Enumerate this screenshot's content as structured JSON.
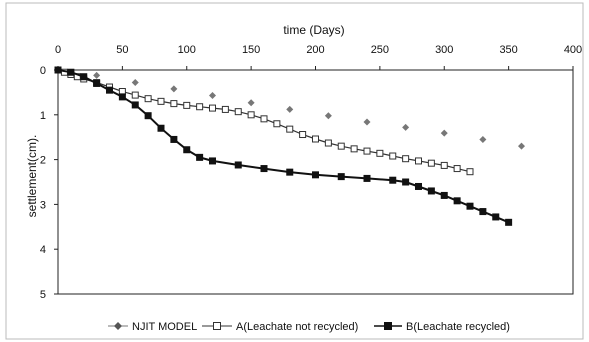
{
  "chart_data": {
    "type": "line",
    "title": "",
    "xlabel": "time (Days)",
    "ylabel": "settlement(cm).",
    "xlim": [
      0,
      400
    ],
    "ylim": [
      0,
      5
    ],
    "y_inverted": true,
    "x_axis_position": "top",
    "grid": false,
    "legend_position": "bottom",
    "x_ticks": [
      "0",
      "50",
      "100",
      "150",
      "200",
      "250",
      "300",
      "350",
      "400"
    ],
    "y_ticks": [
      "0",
      "1",
      "2",
      "3",
      "4",
      "5"
    ],
    "series": [
      {
        "name": "NJIT MODEL",
        "marker": "diamond",
        "color": "#777777",
        "line": false,
        "points": [
          [
            30,
            0.12
          ],
          [
            60,
            0.28
          ],
          [
            90,
            0.42
          ],
          [
            120,
            0.57
          ],
          [
            150,
            0.73
          ],
          [
            180,
            0.88
          ],
          [
            210,
            1.02
          ],
          [
            240,
            1.16
          ],
          [
            270,
            1.28
          ],
          [
            300,
            1.41
          ],
          [
            330,
            1.55
          ],
          [
            360,
            1.7
          ]
        ]
      },
      {
        "name": "A(Leachate not recycled)",
        "marker": "square-open",
        "color": "#333333",
        "line": true,
        "points": [
          [
            0,
            0.0
          ],
          [
            5,
            0.05
          ],
          [
            10,
            0.1
          ],
          [
            15,
            0.15
          ],
          [
            20,
            0.2
          ],
          [
            30,
            0.28
          ],
          [
            40,
            0.38
          ],
          [
            50,
            0.48
          ],
          [
            60,
            0.56
          ],
          [
            70,
            0.64
          ],
          [
            80,
            0.7
          ],
          [
            90,
            0.75
          ],
          [
            100,
            0.79
          ],
          [
            110,
            0.82
          ],
          [
            120,
            0.85
          ],
          [
            130,
            0.88
          ],
          [
            140,
            0.93
          ],
          [
            150,
            1.0
          ],
          [
            160,
            1.09
          ],
          [
            170,
            1.2
          ],
          [
            180,
            1.32
          ],
          [
            190,
            1.44
          ],
          [
            200,
            1.54
          ],
          [
            210,
            1.63
          ],
          [
            220,
            1.7
          ],
          [
            230,
            1.76
          ],
          [
            240,
            1.81
          ],
          [
            250,
            1.86
          ],
          [
            260,
            1.92
          ],
          [
            270,
            1.98
          ],
          [
            280,
            2.03
          ],
          [
            290,
            2.08
          ],
          [
            300,
            2.13
          ],
          [
            310,
            2.2
          ],
          [
            320,
            2.27
          ]
        ]
      },
      {
        "name": "B(Leachate recycled)",
        "marker": "square-filled",
        "color": "#111111",
        "line": true,
        "points": [
          [
            0,
            0.0
          ],
          [
            10,
            0.05
          ],
          [
            20,
            0.15
          ],
          [
            30,
            0.3
          ],
          [
            40,
            0.45
          ],
          [
            50,
            0.6
          ],
          [
            60,
            0.78
          ],
          [
            70,
            1.02
          ],
          [
            80,
            1.3
          ],
          [
            90,
            1.55
          ],
          [
            100,
            1.78
          ],
          [
            110,
            1.95
          ],
          [
            120,
            2.03
          ],
          [
            140,
            2.12
          ],
          [
            160,
            2.2
          ],
          [
            180,
            2.28
          ],
          [
            200,
            2.34
          ],
          [
            220,
            2.38
          ],
          [
            240,
            2.42
          ],
          [
            260,
            2.46
          ],
          [
            270,
            2.5
          ],
          [
            280,
            2.6
          ],
          [
            290,
            2.7
          ],
          [
            300,
            2.8
          ],
          [
            310,
            2.92
          ],
          [
            320,
            3.04
          ],
          [
            330,
            3.16
          ],
          [
            340,
            3.28
          ],
          [
            350,
            3.4
          ]
        ]
      }
    ]
  }
}
